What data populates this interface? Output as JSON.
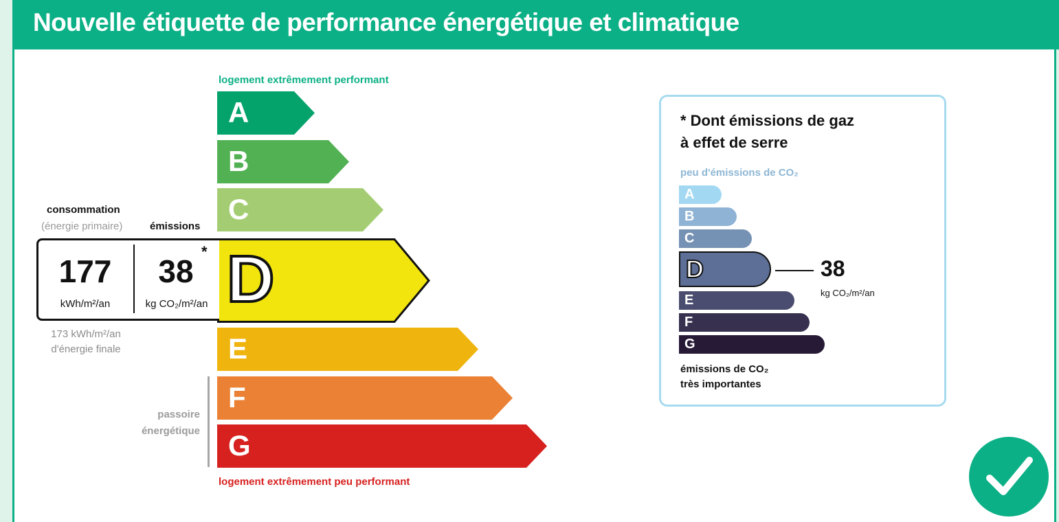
{
  "header": {
    "title": "Nouvelle étiquette de performance énergétique et climatique"
  },
  "dpe": {
    "top_caption": "logement extrêmement performant",
    "bottom_caption": "logement extrêmement peu performant",
    "classes": [
      {
        "letter": "A",
        "color": "#04a36b"
      },
      {
        "letter": "B",
        "color": "#52b153"
      },
      {
        "letter": "C",
        "color": "#a4cd73"
      },
      {
        "letter": "D",
        "color": "#f2e50e"
      },
      {
        "letter": "E",
        "color": "#f0b40e"
      },
      {
        "letter": "F",
        "color": "#eb8134"
      },
      {
        "letter": "G",
        "color": "#d6211f"
      }
    ],
    "current_class": "D",
    "consumption_label": "consommation",
    "consumption_sublabel": "(énergie primaire)",
    "emissions_label": "émissions",
    "consumption_value": "177",
    "consumption_unit": "kWh/m²/an",
    "emissions_value": "38",
    "emissions_asterisk": "*",
    "emissions_unit": "kg CO₂/m²/an",
    "final_energy_line1": "173 kWh/m²/an",
    "final_energy_line2": "d'énergie finale",
    "passoire_line1": "passoire",
    "passoire_line2": "énergétique"
  },
  "ges": {
    "title_line1": "* Dont émissions de gaz",
    "title_line2": "à effet de serre",
    "top_caption": "peu d'émissions de CO₂",
    "bottom_line1": "émissions de CO₂",
    "bottom_line2": "très importantes",
    "classes": [
      {
        "letter": "A",
        "color": "#a3d8f3"
      },
      {
        "letter": "B",
        "color": "#8eb3d4"
      },
      {
        "letter": "C",
        "color": "#7591b3"
      },
      {
        "letter": "D",
        "color": "#5d6f96"
      },
      {
        "letter": "E",
        "color": "#4a4d6f"
      },
      {
        "letter": "F",
        "color": "#37304f"
      },
      {
        "letter": "G",
        "color": "#271a36"
      }
    ],
    "current_class": "D",
    "value": "38",
    "unit": "kg CO₂/m²/an"
  },
  "badge": {
    "icon": "check-icon",
    "color": "#0cb086"
  }
}
